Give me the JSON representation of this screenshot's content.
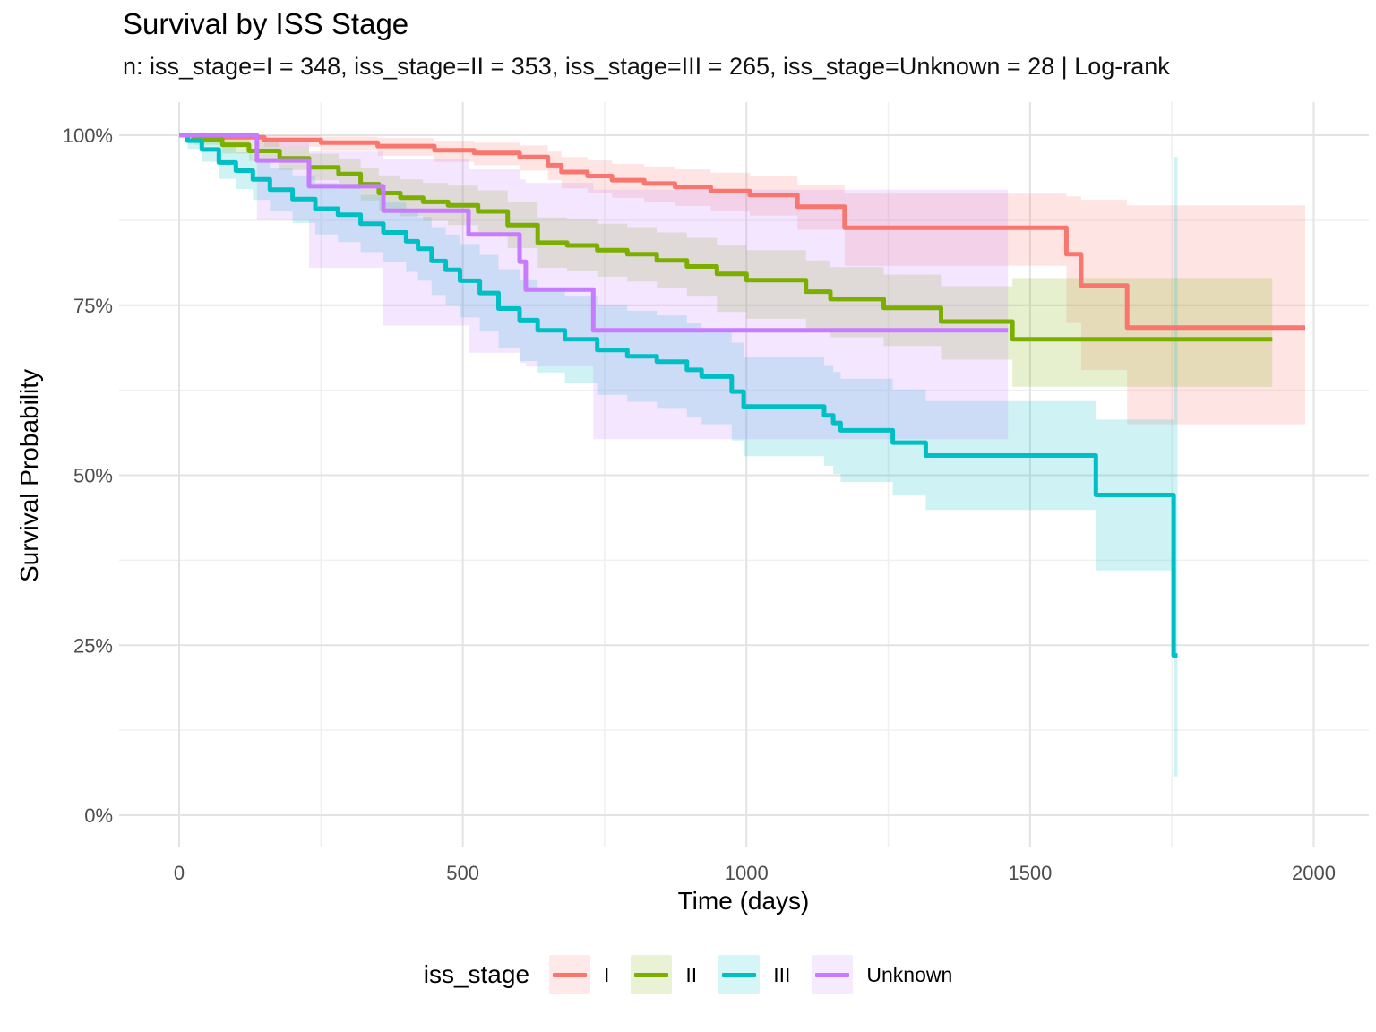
{
  "chart_data": {
    "type": "line",
    "subtype": "kaplan-meier-step-with-confidence-bands",
    "title": "Survival by ISS Stage",
    "subtitle": "n: iss_stage=I = 348, iss_stage=II = 353, iss_stage=III = 265, iss_stage=Unknown = 28 | Log-rank",
    "xlabel": "Time (days)",
    "ylabel": "Survival Probability",
    "legend_title": "iss_stage",
    "legend_position": "bottom",
    "grid": "on",
    "axes": {
      "xlim": [
        0,
        2000
      ],
      "ylim": [
        0,
        100
      ],
      "x_ticks": [
        0,
        500,
        1000,
        1500,
        2000
      ],
      "x_minor": [
        250,
        750,
        1250,
        1750
      ],
      "y_ticks": [
        {
          "value": 0,
          "label": "0%"
        },
        {
          "value": 25,
          "label": "25%"
        },
        {
          "value": 50,
          "label": "50%"
        },
        {
          "value": 75,
          "label": "75%"
        },
        {
          "value": 100,
          "label": "100%"
        }
      ],
      "y_minor": [
        12.5,
        37.5,
        62.5,
        87.5
      ]
    },
    "style": {
      "grid_major_color": "#e3e3e3",
      "grid_minor_color": "#f0f0f0",
      "tick_label_color": "#4d4d4d",
      "band_alpha": 0.19,
      "line_width": 5
    },
    "series": [
      {
        "name": "I",
        "n": 348,
        "color": "#F8766D",
        "points": [
          [
            0,
            100,
            100,
            100
          ],
          [
            50,
            99.7,
            99.0,
            100
          ],
          [
            150,
            99.3,
            98.3,
            100
          ],
          [
            250,
            98.9,
            97.7,
            99.8
          ],
          [
            350,
            98.4,
            97.0,
            99.6
          ],
          [
            450,
            97.8,
            96.1,
            99.2
          ],
          [
            520,
            97.4,
            95.6,
            98.9
          ],
          [
            600,
            96.8,
            94.8,
            98.5
          ],
          [
            650,
            95.6,
            93.4,
            97.6
          ],
          [
            674,
            94.6,
            92.2,
            96.8
          ],
          [
            720,
            94.0,
            91.5,
            96.3
          ],
          [
            763,
            93.4,
            90.8,
            95.8
          ],
          [
            820,
            92.9,
            90.2,
            95.4
          ],
          [
            874,
            92.4,
            89.6,
            95.0
          ],
          [
            937,
            91.8,
            88.9,
            94.5
          ],
          [
            1006,
            91.2,
            88.2,
            94.0
          ],
          [
            1090,
            89.5,
            86.1,
            92.7
          ],
          [
            1173,
            86.4,
            80.8,
            91.4
          ],
          [
            1564,
            82.5,
            72.5,
            91.0
          ],
          [
            1590,
            77.9,
            65.5,
            90.5
          ],
          [
            1671,
            71.7,
            57.5,
            89.7
          ],
          [
            1985,
            71.7,
            57.5,
            89.7
          ]
        ]
      },
      {
        "name": "II",
        "n": 353,
        "color": "#7CAE00",
        "points": [
          [
            0,
            100,
            100,
            100
          ],
          [
            25,
            99.4,
            98.6,
            100
          ],
          [
            76,
            98.6,
            97.3,
            99.7
          ],
          [
            123,
            97.7,
            96.2,
            99.1
          ],
          [
            177,
            96.6,
            94.9,
            98.3
          ],
          [
            229,
            95.3,
            93.4,
            97.3
          ],
          [
            281,
            94.3,
            92.1,
            96.5
          ],
          [
            320,
            92.8,
            90.4,
            95.2
          ],
          [
            352,
            91.5,
            88.9,
            94.1
          ],
          [
            390,
            90.8,
            88.1,
            93.5
          ],
          [
            430,
            90.2,
            87.4,
            93.0
          ],
          [
            474,
            89.7,
            86.8,
            92.6
          ],
          [
            527,
            88.8,
            85.7,
            91.9
          ],
          [
            579,
            86.8,
            83.4,
            90.2
          ],
          [
            632,
            84.2,
            80.5,
            87.9
          ],
          [
            684,
            83.8,
            80.0,
            87.6
          ],
          [
            737,
            83.1,
            79.2,
            87.0
          ],
          [
            790,
            82.5,
            78.5,
            86.5
          ],
          [
            842,
            81.6,
            77.5,
            85.7
          ],
          [
            895,
            80.7,
            76.4,
            84.9
          ],
          [
            948,
            79.6,
            74.0,
            83.9
          ],
          [
            1000,
            78.7,
            73.0,
            83.1
          ],
          [
            1105,
            77.0,
            71.3,
            81.6
          ],
          [
            1148,
            75.9,
            70.3,
            80.6
          ],
          [
            1242,
            74.6,
            69.0,
            79.5
          ],
          [
            1343,
            72.6,
            67.0,
            77.8
          ],
          [
            1469,
            70.0,
            63.0,
            79.0
          ],
          [
            1927,
            70.0,
            63.0,
            79.0
          ]
        ]
      },
      {
        "name": "III",
        "n": 265,
        "color": "#00BFC4",
        "points": [
          [
            0,
            100,
            100,
            100
          ],
          [
            15,
            99.2,
            98.0,
            100
          ],
          [
            40,
            97.9,
            96.1,
            99.7
          ],
          [
            70,
            96.0,
            93.6,
            98.4
          ],
          [
            100,
            94.8,
            92.1,
            97.5
          ],
          [
            130,
            93.5,
            90.5,
            96.5
          ],
          [
            160,
            92.0,
            88.8,
            95.2
          ],
          [
            200,
            90.6,
            87.1,
            94.1
          ],
          [
            240,
            89.2,
            85.4,
            93.0
          ],
          [
            280,
            88.3,
            84.3,
            92.3
          ],
          [
            320,
            87.0,
            82.8,
            91.2
          ],
          [
            360,
            85.7,
            81.3,
            90.1
          ],
          [
            400,
            84.4,
            79.9,
            88.9
          ],
          [
            421,
            83.3,
            78.6,
            88.0
          ],
          [
            445,
            81.5,
            76.5,
            86.5
          ],
          [
            470,
            80.2,
            75.0,
            85.4
          ],
          [
            495,
            78.6,
            73.2,
            84.0
          ],
          [
            530,
            76.8,
            71.2,
            82.4
          ],
          [
            563,
            74.5,
            68.7,
            80.3
          ],
          [
            600,
            72.8,
            66.8,
            78.8
          ],
          [
            632,
            71.3,
            65.1,
            77.5
          ],
          [
            680,
            70.0,
            63.6,
            76.4
          ],
          [
            737,
            68.4,
            61.8,
            75.0
          ],
          [
            790,
            67.5,
            60.8,
            74.2
          ],
          [
            842,
            66.7,
            59.9,
            73.5
          ],
          [
            895,
            65.5,
            58.6,
            72.4
          ],
          [
            921,
            64.5,
            57.5,
            71.5
          ],
          [
            974,
            62.3,
            55.1,
            69.5
          ],
          [
            995,
            60.1,
            52.8,
            67.4
          ],
          [
            1137,
            58.8,
            51.4,
            66.2
          ],
          [
            1153,
            57.7,
            50.2,
            65.2
          ],
          [
            1166,
            56.6,
            49.0,
            64.2
          ],
          [
            1258,
            54.8,
            47.0,
            62.6
          ],
          [
            1316,
            52.9,
            44.9,
            60.9
          ],
          [
            1616,
            47.1,
            36.0,
            58.2
          ],
          [
            1753,
            23.5,
            5.7,
            96.8
          ],
          [
            1760,
            23.5,
            5.7,
            96.8
          ]
        ]
      },
      {
        "name": "Unknown",
        "n": 28,
        "color": "#C77CFF",
        "points": [
          [
            0,
            100,
            100,
            100
          ],
          [
            137,
            96.3,
            87.5,
            99.6
          ],
          [
            229,
            92.5,
            80.5,
            97.6
          ],
          [
            360,
            88.9,
            72.0,
            96.5
          ],
          [
            510,
            85.4,
            68.0,
            95.0
          ],
          [
            600,
            81.4,
            66.5,
            93.5
          ],
          [
            611,
            77.3,
            66.0,
            93.0
          ],
          [
            730,
            71.3,
            55.3,
            92.0
          ],
          [
            1461,
            71.3,
            55.3,
            92.0
          ]
        ]
      }
    ]
  }
}
